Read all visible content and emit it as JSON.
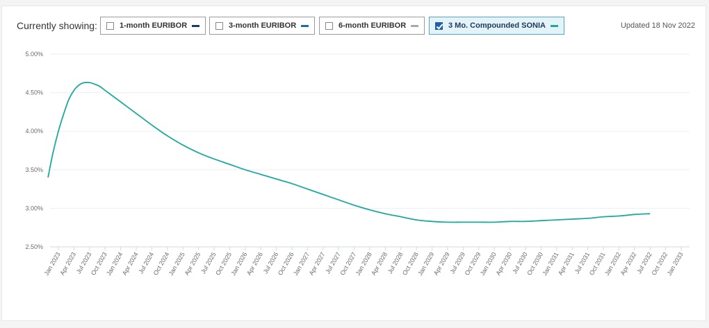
{
  "header": {
    "label": "Currently showing:",
    "toggles": [
      {
        "label": "1-month EURIBOR",
        "checked": false,
        "color": "#1b3a6b"
      },
      {
        "label": "3-month EURIBOR",
        "checked": false,
        "color": "#1a6fa8"
      },
      {
        "label": "6-month EURIBOR",
        "checked": false,
        "color": "#a8a8a8"
      },
      {
        "label": "3 Mo. Compounded SONIA",
        "checked": true,
        "color": "#1aaa9b"
      }
    ],
    "updated": "Updated 18 Nov 2022"
  },
  "chart_data": {
    "type": "line",
    "title": "",
    "xlabel": "",
    "ylabel": "",
    "ylim": [
      2.5,
      5.0
    ],
    "yticks": [
      "5.00%",
      "4.50%",
      "4.00%",
      "3.50%",
      "3.00%",
      "2.50%"
    ],
    "ytick_values": [
      5.0,
      4.5,
      4.0,
      3.5,
      3.0,
      2.5
    ],
    "xticks": [
      "Jan 2023",
      "Apr 2023",
      "Jul 2023",
      "Oct 2023",
      "Jan 2024",
      "Apr 2024",
      "Jul 2024",
      "Oct 2024",
      "Jan 2025",
      "Apr 2025",
      "Jul 2025",
      "Oct 2025",
      "Jan 2026",
      "Apr 2026",
      "Jul 2026",
      "Oct 2026",
      "Jan 2027",
      "Apr 2027",
      "Jul 2027",
      "Oct 2027",
      "Jan 2028",
      "Apr 2028",
      "Jul 2028",
      "Oct 2028",
      "Jan 2029",
      "Apr 2029",
      "Jul 2029",
      "Oct 2029",
      "Jan 2030",
      "Apr 2030",
      "Jul 2030",
      "Oct 2030",
      "Jan 2031",
      "Apr 2031",
      "Jul 2031",
      "Oct 2031",
      "Jan 2032",
      "Apr 2032",
      "Jul 2032",
      "Oct 2032",
      "Jan 2033"
    ],
    "grid": true,
    "series": [
      {
        "name": "3 Mo. Compounded SONIA",
        "color": "#1aaa9b",
        "points": [
          [
            "Nov 2022",
            3.4
          ],
          [
            "Dec 2022",
            3.73
          ],
          [
            "Jan 2023",
            4.0
          ],
          [
            "Feb 2023",
            4.22
          ],
          [
            "Mar 2023",
            4.41
          ],
          [
            "Apr 2023",
            4.53
          ],
          [
            "May 2023",
            4.6
          ],
          [
            "Jun 2023",
            4.63
          ],
          [
            "Jul 2023",
            4.63
          ],
          [
            "Aug 2023",
            4.61
          ],
          [
            "Sep 2023",
            4.58
          ],
          [
            "Oct 2023",
            4.53
          ],
          [
            "Jan 2024",
            4.38
          ],
          [
            "Apr 2024",
            4.23
          ],
          [
            "Jul 2024",
            4.08
          ],
          [
            "Oct 2024",
            3.94
          ],
          [
            "Jan 2025",
            3.82
          ],
          [
            "Apr 2025",
            3.72
          ],
          [
            "Jul 2025",
            3.64
          ],
          [
            "Oct 2025",
            3.57
          ],
          [
            "Jan 2026",
            3.5
          ],
          [
            "Apr 2026",
            3.44
          ],
          [
            "Jul 2026",
            3.38
          ],
          [
            "Oct 2026",
            3.32
          ],
          [
            "Jan 2027",
            3.25
          ],
          [
            "Apr 2027",
            3.18
          ],
          [
            "Jul 2027",
            3.11
          ],
          [
            "Oct 2027",
            3.04
          ],
          [
            "Jan 2028",
            2.98
          ],
          [
            "Apr 2028",
            2.93
          ],
          [
            "Jul 2028",
            2.89
          ],
          [
            "Oct 2028",
            2.85
          ],
          [
            "Jan 2029",
            2.83
          ],
          [
            "Apr 2029",
            2.82
          ],
          [
            "Jul 2029",
            2.82
          ],
          [
            "Oct 2029",
            2.82
          ],
          [
            "Jan 2030",
            2.82
          ],
          [
            "Apr 2030",
            2.83
          ],
          [
            "Jul 2030",
            2.83
          ],
          [
            "Oct 2030",
            2.84
          ],
          [
            "Jan 2031",
            2.85
          ],
          [
            "Apr 2031",
            2.86
          ],
          [
            "Jul 2031",
            2.87
          ],
          [
            "Oct 2031",
            2.89
          ],
          [
            "Jan 2032",
            2.9
          ],
          [
            "Apr 2032",
            2.92
          ],
          [
            "Jul 2032",
            2.93
          ]
        ]
      }
    ]
  }
}
